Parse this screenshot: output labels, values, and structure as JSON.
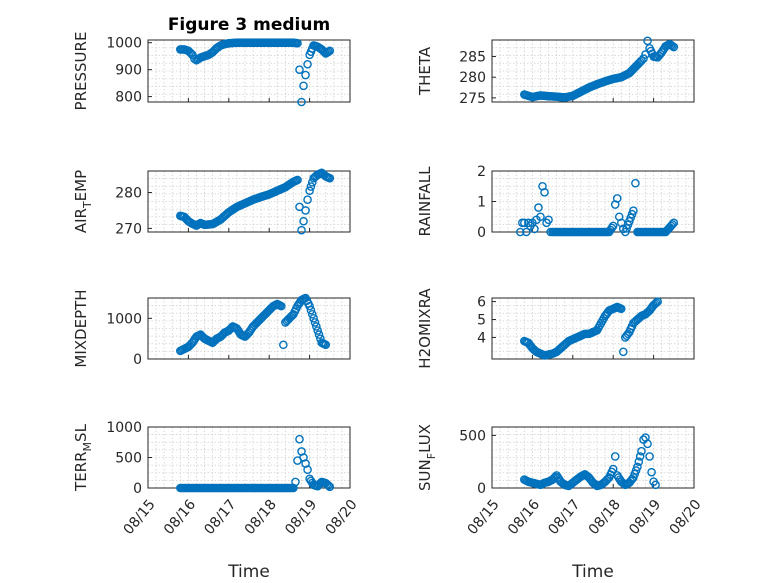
{
  "figure": {
    "title": "Figure 3 medium"
  },
  "x_tick_labels": [
    "08/15",
    "08/16",
    "08/17",
    "08/18",
    "08/19",
    "08/20"
  ],
  "colors": {
    "marker": "#0072BD",
    "axis": "#262626",
    "grid": "#cfcfcf"
  },
  "chart_data": [
    {
      "type": "scatter",
      "title": "Figure 3 medium",
      "ylabel_main": "PRESSURE",
      "ylabel_sub": "",
      "ylabel_tail": "",
      "xlabel": "",
      "ylim": [
        780,
        1010
      ],
      "yticks": [
        800,
        900,
        1000
      ],
      "xlim": [
        0,
        5
      ],
      "grid": true,
      "marker": "circle",
      "points": [
        [
          0.8,
          975
        ],
        [
          0.9,
          975
        ],
        [
          1.0,
          970
        ],
        [
          1.1,
          955
        ],
        [
          1.15,
          940
        ],
        [
          1.2,
          935
        ],
        [
          1.3,
          945
        ],
        [
          1.4,
          950
        ],
        [
          1.5,
          955
        ],
        [
          1.6,
          965
        ],
        [
          1.7,
          980
        ],
        [
          1.8,
          990
        ],
        [
          1.9,
          995
        ],
        [
          2.0,
          998
        ],
        [
          2.2,
          1000
        ],
        [
          2.4,
          1000
        ],
        [
          2.6,
          1000
        ],
        [
          2.8,
          1000
        ],
        [
          3.0,
          1000
        ],
        [
          3.2,
          1000
        ],
        [
          3.4,
          1000
        ],
        [
          3.6,
          1000
        ],
        [
          3.7,
          998
        ],
        [
          3.75,
          900
        ],
        [
          3.8,
          780
        ],
        [
          3.85,
          840
        ],
        [
          3.9,
          880
        ],
        [
          3.95,
          920
        ],
        [
          4.0,
          955
        ],
        [
          4.1,
          990
        ],
        [
          4.2,
          985
        ],
        [
          4.3,
          975
        ],
        [
          4.4,
          960
        ],
        [
          4.5,
          970
        ]
      ]
    },
    {
      "type": "scatter",
      "title": "",
      "ylabel_main": "THETA",
      "ylabel_sub": "",
      "ylabel_tail": "",
      "xlabel": "",
      "ylim": [
        274,
        289
      ],
      "yticks": [
        275,
        280,
        285
      ],
      "xlim": [
        0,
        5
      ],
      "grid": true,
      "marker": "circle",
      "points": [
        [
          0.8,
          275.8
        ],
        [
          1.0,
          275.2
        ],
        [
          1.2,
          275.6
        ],
        [
          1.4,
          275.4
        ],
        [
          1.6,
          275.3
        ],
        [
          1.8,
          275.1
        ],
        [
          2.0,
          275.5
        ],
        [
          2.2,
          276.5
        ],
        [
          2.4,
          277.5
        ],
        [
          2.6,
          278.3
        ],
        [
          2.8,
          279.0
        ],
        [
          3.0,
          279.6
        ],
        [
          3.2,
          280.0
        ],
        [
          3.4,
          281.0
        ],
        [
          3.5,
          282.0
        ],
        [
          3.6,
          283.0
        ],
        [
          3.7,
          284.0
        ],
        [
          3.75,
          284.5
        ],
        [
          3.8,
          285.5
        ],
        [
          3.85,
          288.8
        ],
        [
          3.9,
          287.0
        ],
        [
          4.0,
          285.0
        ],
        [
          4.1,
          284.8
        ],
        [
          4.2,
          286.0
        ],
        [
          4.3,
          287.5
        ],
        [
          4.4,
          288.0
        ],
        [
          4.5,
          287.3
        ]
      ]
    },
    {
      "type": "scatter",
      "title": "",
      "ylabel_main": "AIR",
      "ylabel_sub": "T",
      "ylabel_tail": "EMP",
      "xlabel": "",
      "ylim": [
        269,
        286
      ],
      "yticks": [
        270,
        280
      ],
      "xlim": [
        0,
        5
      ],
      "grid": true,
      "marker": "circle",
      "points": [
        [
          0.8,
          273.5
        ],
        [
          0.9,
          273.2
        ],
        [
          1.0,
          272.0
        ],
        [
          1.1,
          271.3
        ],
        [
          1.2,
          270.8
        ],
        [
          1.3,
          271.5
        ],
        [
          1.4,
          271.0
        ],
        [
          1.6,
          271.2
        ],
        [
          1.8,
          272.5
        ],
        [
          2.0,
          274.5
        ],
        [
          2.2,
          276.0
        ],
        [
          2.4,
          277.0
        ],
        [
          2.6,
          278.0
        ],
        [
          2.8,
          278.8
        ],
        [
          3.0,
          279.5
        ],
        [
          3.2,
          280.5
        ],
        [
          3.4,
          281.5
        ],
        [
          3.6,
          283.0
        ],
        [
          3.7,
          283.5
        ],
        [
          3.75,
          276.0
        ],
        [
          3.8,
          269.5
        ],
        [
          3.85,
          272.0
        ],
        [
          3.9,
          275.0
        ],
        [
          3.95,
          278.0
        ],
        [
          4.0,
          280.5
        ],
        [
          4.1,
          284.0
        ],
        [
          4.2,
          285.0
        ],
        [
          4.3,
          285.5
        ],
        [
          4.4,
          284.5
        ],
        [
          4.5,
          284.0
        ]
      ]
    },
    {
      "type": "scatter",
      "title": "",
      "ylabel_main": "RAINFALL",
      "ylabel_sub": "",
      "ylabel_tail": "",
      "xlabel": "",
      "ylim": [
        0,
        2
      ],
      "yticks": [
        0,
        1,
        2
      ],
      "xlim": [
        0,
        5
      ],
      "grid": true,
      "marker": "circle",
      "points": [
        [
          0.7,
          0
        ],
        [
          0.75,
          0.3
        ],
        [
          0.8,
          0.3
        ],
        [
          0.85,
          0
        ],
        [
          0.9,
          0.3
        ],
        [
          0.95,
          0.2
        ],
        [
          1.0,
          0.3
        ],
        [
          1.05,
          0.1
        ],
        [
          1.1,
          0.4
        ],
        [
          1.15,
          0.8
        ],
        [
          1.2,
          0.5
        ],
        [
          1.25,
          1.5
        ],
        [
          1.3,
          1.3
        ],
        [
          1.35,
          0.3
        ],
        [
          1.4,
          0.4
        ],
        [
          1.45,
          0
        ],
        [
          1.5,
          0
        ],
        [
          1.7,
          0
        ],
        [
          1.9,
          0
        ],
        [
          2.1,
          0
        ],
        [
          2.3,
          0
        ],
        [
          2.5,
          0
        ],
        [
          2.7,
          0
        ],
        [
          2.9,
          0
        ],
        [
          3.0,
          0.2
        ],
        [
          3.05,
          0.9
        ],
        [
          3.1,
          1.1
        ],
        [
          3.15,
          0.5
        ],
        [
          3.2,
          0.3
        ],
        [
          3.25,
          0.1
        ],
        [
          3.3,
          0
        ],
        [
          3.5,
          0.7
        ],
        [
          3.55,
          1.6
        ],
        [
          3.6,
          0
        ],
        [
          3.7,
          0
        ],
        [
          3.9,
          0
        ],
        [
          4.1,
          0
        ],
        [
          4.3,
          0
        ],
        [
          4.5,
          0.3
        ]
      ]
    },
    {
      "type": "scatter",
      "title": "",
      "ylabel_main": "MIXDEPTH",
      "ylabel_sub": "",
      "ylabel_tail": "",
      "xlabel": "",
      "ylim": [
        0,
        1500
      ],
      "yticks": [
        0,
        1000
      ],
      "xlim": [
        0,
        5
      ],
      "grid": true,
      "marker": "circle",
      "points": [
        [
          0.8,
          200
        ],
        [
          0.9,
          250
        ],
        [
          1.0,
          300
        ],
        [
          1.1,
          400
        ],
        [
          1.2,
          550
        ],
        [
          1.3,
          600
        ],
        [
          1.4,
          500
        ],
        [
          1.5,
          450
        ],
        [
          1.6,
          400
        ],
        [
          1.7,
          500
        ],
        [
          1.8,
          550
        ],
        [
          1.9,
          650
        ],
        [
          2.0,
          700
        ],
        [
          2.1,
          800
        ],
        [
          2.2,
          750
        ],
        [
          2.3,
          600
        ],
        [
          2.4,
          550
        ],
        [
          2.5,
          650
        ],
        [
          2.6,
          800
        ],
        [
          2.7,
          900
        ],
        [
          2.8,
          1000
        ],
        [
          2.9,
          1100
        ],
        [
          3.0,
          1200
        ],
        [
          3.1,
          1300
        ],
        [
          3.2,
          1350
        ],
        [
          3.3,
          1300
        ],
        [
          3.35,
          350
        ],
        [
          3.4,
          900
        ],
        [
          3.5,
          1000
        ],
        [
          3.6,
          1100
        ],
        [
          3.7,
          1300
        ],
        [
          3.8,
          1450
        ],
        [
          3.9,
          1500
        ],
        [
          4.0,
          1300
        ],
        [
          4.1,
          1000
        ],
        [
          4.2,
          700
        ],
        [
          4.3,
          400
        ],
        [
          4.4,
          350
        ]
      ]
    },
    {
      "type": "scatter",
      "title": "",
      "ylabel_main": "H2OMIXRA",
      "ylabel_sub": "",
      "ylabel_tail": "",
      "xlabel": "",
      "ylim": [
        2.8,
        6.2
      ],
      "yticks": [
        4,
        5,
        6
      ],
      "xlim": [
        0,
        5
      ],
      "grid": true,
      "marker": "circle",
      "points": [
        [
          0.8,
          3.8
        ],
        [
          0.9,
          3.7
        ],
        [
          1.0,
          3.4
        ],
        [
          1.1,
          3.2
        ],
        [
          1.2,
          3.1
        ],
        [
          1.3,
          3.0
        ],
        [
          1.4,
          3.05
        ],
        [
          1.5,
          3.1
        ],
        [
          1.6,
          3.2
        ],
        [
          1.7,
          3.4
        ],
        [
          1.8,
          3.6
        ],
        [
          1.9,
          3.8
        ],
        [
          2.0,
          3.9
        ],
        [
          2.1,
          4.0
        ],
        [
          2.2,
          4.1
        ],
        [
          2.3,
          4.2
        ],
        [
          2.4,
          4.2
        ],
        [
          2.5,
          4.3
        ],
        [
          2.6,
          4.4
        ],
        [
          2.7,
          4.8
        ],
        [
          2.8,
          5.2
        ],
        [
          2.9,
          5.5
        ],
        [
          3.0,
          5.6
        ],
        [
          3.1,
          5.7
        ],
        [
          3.2,
          5.6
        ],
        [
          3.25,
          3.2
        ],
        [
          3.3,
          4.0
        ],
        [
          3.4,
          4.3
        ],
        [
          3.5,
          4.8
        ],
        [
          3.6,
          5.0
        ],
        [
          3.7,
          5.2
        ],
        [
          3.8,
          5.3
        ],
        [
          3.9,
          5.5
        ],
        [
          4.0,
          5.8
        ],
        [
          4.1,
          6.0
        ]
      ]
    },
    {
      "type": "scatter",
      "title": "",
      "ylabel_main": "TERR",
      "ylabel_sub": "M",
      "ylabel_tail": "SL",
      "xlabel": "Time",
      "ylim": [
        0,
        1000
      ],
      "yticks": [
        0,
        500,
        1000
      ],
      "xlim": [
        0,
        5
      ],
      "grid": true,
      "marker": "circle",
      "points": [
        [
          0.8,
          0
        ],
        [
          1.0,
          0
        ],
        [
          1.2,
          0
        ],
        [
          1.4,
          0
        ],
        [
          1.6,
          0
        ],
        [
          1.8,
          0
        ],
        [
          2.0,
          0
        ],
        [
          2.2,
          0
        ],
        [
          2.4,
          0
        ],
        [
          2.6,
          0
        ],
        [
          2.8,
          0
        ],
        [
          3.0,
          0
        ],
        [
          3.2,
          0
        ],
        [
          3.4,
          0
        ],
        [
          3.6,
          0
        ],
        [
          3.65,
          100
        ],
        [
          3.7,
          450
        ],
        [
          3.75,
          800
        ],
        [
          3.8,
          600
        ],
        [
          3.85,
          500
        ],
        [
          3.9,
          400
        ],
        [
          3.95,
          300
        ],
        [
          4.0,
          150
        ],
        [
          4.1,
          50
        ],
        [
          4.2,
          30
        ],
        [
          4.3,
          100
        ],
        [
          4.4,
          80
        ],
        [
          4.5,
          20
        ]
      ]
    },
    {
      "type": "scatter",
      "title": "",
      "ylabel_main": "SUN",
      "ylabel_sub": "F",
      "ylabel_tail": "LUX",
      "xlabel": "Time",
      "ylim": [
        0,
        580
      ],
      "yticks": [
        0,
        500
      ],
      "xlim": [
        0,
        5
      ],
      "grid": true,
      "marker": "circle",
      "points": [
        [
          0.8,
          80
        ],
        [
          0.9,
          60
        ],
        [
          1.0,
          50
        ],
        [
          1.1,
          40
        ],
        [
          1.2,
          30
        ],
        [
          1.3,
          50
        ],
        [
          1.4,
          60
        ],
        [
          1.5,
          80
        ],
        [
          1.6,
          120
        ],
        [
          1.7,
          60
        ],
        [
          1.8,
          30
        ],
        [
          1.9,
          20
        ],
        [
          2.0,
          50
        ],
        [
          2.1,
          80
        ],
        [
          2.2,
          110
        ],
        [
          2.3,
          130
        ],
        [
          2.4,
          100
        ],
        [
          2.5,
          50
        ],
        [
          2.6,
          20
        ],
        [
          2.7,
          30
        ],
        [
          2.8,
          60
        ],
        [
          2.9,
          100
        ],
        [
          3.0,
          180
        ],
        [
          3.05,
          300
        ],
        [
          3.1,
          120
        ],
        [
          3.2,
          60
        ],
        [
          3.3,
          30
        ],
        [
          3.4,
          50
        ],
        [
          3.5,
          100
        ],
        [
          3.6,
          200
        ],
        [
          3.7,
          350
        ],
        [
          3.75,
          460
        ],
        [
          3.8,
          480
        ],
        [
          3.85,
          420
        ],
        [
          3.9,
          300
        ],
        [
          3.95,
          150
        ],
        [
          4.0,
          60
        ],
        [
          4.05,
          30
        ]
      ]
    }
  ]
}
